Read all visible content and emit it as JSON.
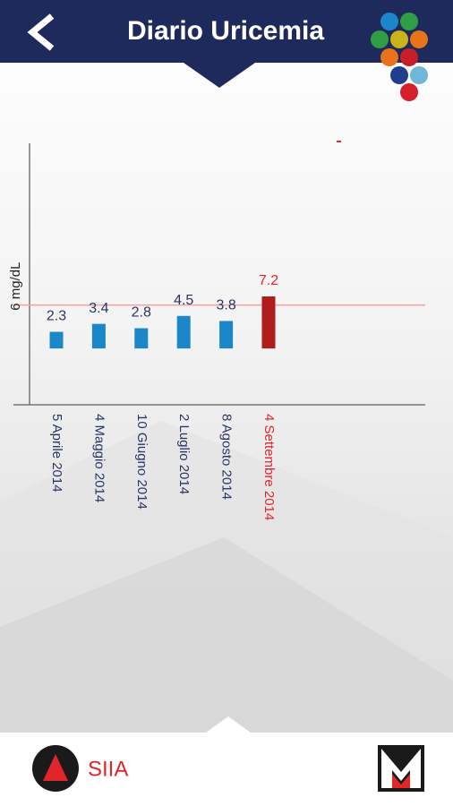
{
  "header": {
    "title": "Diario Uricemia"
  },
  "chart_data": {
    "type": "bar",
    "categories": [
      "5 Aprile 2014",
      "4 Maggio 2014",
      "10 Giugno 2014",
      "2 Luglio 2014",
      "8 Agosto 2014",
      "4 Settembre 2014"
    ],
    "values": [
      2.3,
      3.4,
      2.8,
      4.5,
      3.8,
      7.2
    ],
    "colors": [
      "#1b87c8",
      "#1b87c8",
      "#1b87c8",
      "#1b87c8",
      "#1b87c8",
      "#b01d1d"
    ],
    "label_colors": [
      "#2a3566",
      "#2a3566",
      "#2a3566",
      "#2a3566",
      "#2a3566",
      "#e0262b"
    ],
    "ylim": [
      -7.8,
      28.4
    ],
    "reference_line": {
      "value": 6,
      "label": "6 mg/dL",
      "color": "#f2a0a0"
    }
  },
  "footer": {
    "logo_text": "SIIA"
  }
}
